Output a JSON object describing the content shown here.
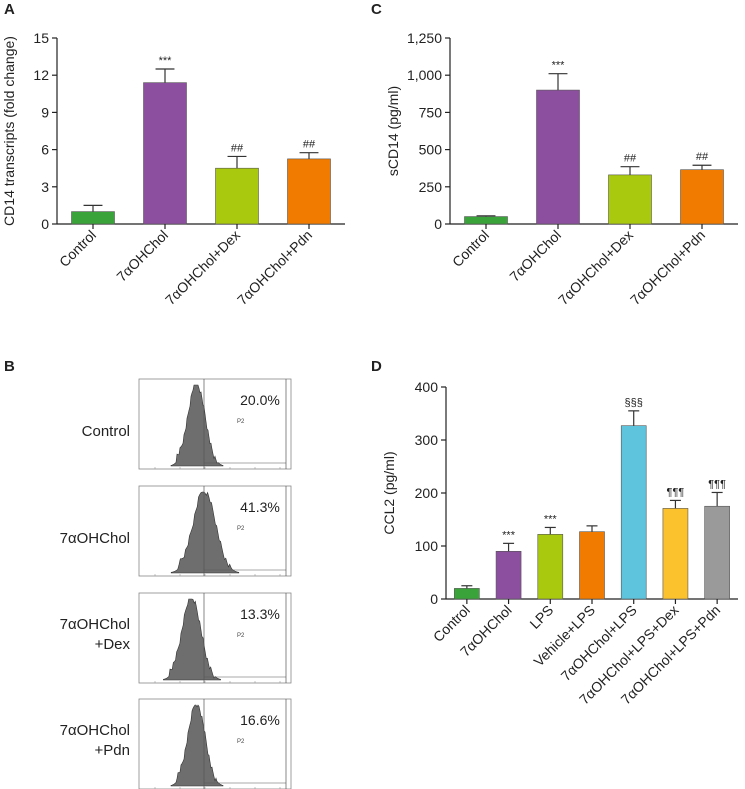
{
  "chart_data": [
    {
      "panel": "A",
      "type": "bar",
      "ylabel": "CD14 transcripts (fold change)",
      "xlabel": "",
      "ylim": [
        0,
        15
      ],
      "yticks": [
        "0",
        "3",
        "6",
        "9",
        "12",
        "15"
      ],
      "categories": [
        "Control",
        "7αOHChol",
        "7αOHChol+Dex",
        "7αOHChol+Pdn"
      ],
      "values": [
        1.0,
        11.4,
        4.5,
        5.25
      ],
      "errors": [
        0.5,
        1.1,
        0.95,
        0.5
      ],
      "significance": [
        "",
        "***",
        "##",
        "##"
      ],
      "colors": [
        "#3aa33a",
        "#8c4f9f",
        "#a9c90f",
        "#f07b00"
      ]
    },
    {
      "panel": "C",
      "type": "bar",
      "ylabel": "sCD14 (pg/ml)",
      "xlabel": "",
      "ylim": [
        0,
        1250
      ],
      "yticks": [
        "0",
        "250",
        "500",
        "750",
        "1,000",
        "1,250"
      ],
      "categories": [
        "Control",
        "7αOHChol",
        "7αOHChol+Dex",
        "7αOHChol+Pdn"
      ],
      "values": [
        50,
        900,
        330,
        365
      ],
      "errors": [
        5,
        110,
        55,
        30
      ],
      "significance": [
        "",
        "***",
        "##",
        "##"
      ],
      "colors": [
        "#3aa33a",
        "#8c4f9f",
        "#a9c90f",
        "#f07b00"
      ]
    },
    {
      "panel": "D",
      "type": "bar",
      "ylabel": "CCL2 (pg/ml)",
      "xlabel": "",
      "ylim": [
        0,
        400
      ],
      "yticks": [
        "0",
        "100",
        "200",
        "300",
        "400"
      ],
      "categories": [
        "Control",
        "7αOHChol",
        "LPS",
        "Vehicle+LPS",
        "7αOHChol+LPS",
        "7αOHChol+LPS+Dex",
        "7αOHChol+LPS+Pdn"
      ],
      "values": [
        20,
        90,
        122,
        127,
        327,
        171,
        175
      ],
      "errors": [
        5,
        15,
        13,
        11,
        28,
        15,
        26
      ],
      "significance": [
        "",
        "***",
        "***",
        "",
        "§§§",
        "¶¶¶",
        "¶¶¶"
      ],
      "colors": [
        "#3aa33a",
        "#8c4f9f",
        "#a9c90f",
        "#f07b00",
        "#5ec4de",
        "#fcc22d",
        "#9a9a9a"
      ]
    },
    {
      "panel": "B",
      "type": "histogram",
      "gate_name": "P2",
      "histograms": [
        {
          "label": "Control",
          "percent": "20.0%"
        },
        {
          "label": "7αOHChol",
          "percent": "41.3%"
        },
        {
          "label": "7αOHChol\n+Dex",
          "label_line1": "7αOHChol",
          "label_line2": "+Dex",
          "percent": "13.3%"
        },
        {
          "label": "7αOHChol\n+Pdn",
          "label_line1": "7αOHChol",
          "label_line2": "+Pdn",
          "percent": "16.6%"
        }
      ]
    }
  ]
}
